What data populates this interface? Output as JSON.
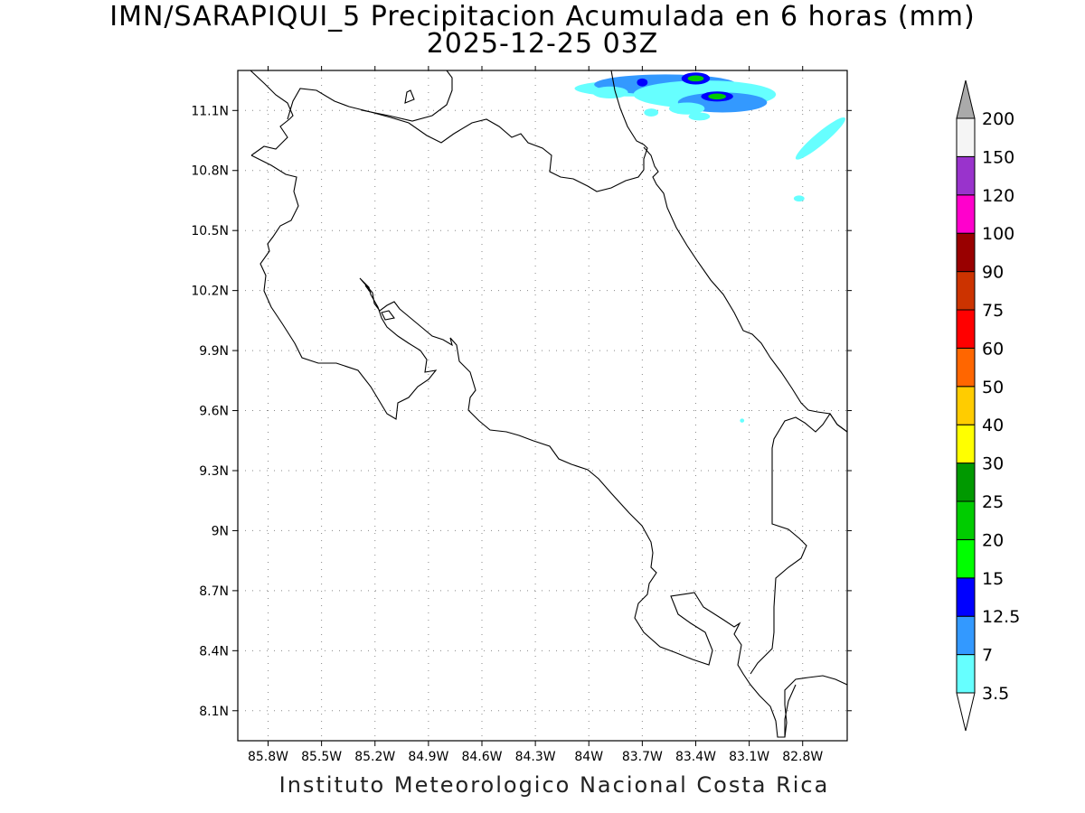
{
  "title": "IMN/SARAPIQUI_5 Precipitacion Acumulada en 6 horas (mm)",
  "subtitle": "2025-12-25 03Z",
  "footer": "Instituto Meteorologico Nacional Costa Rica",
  "axes": {
    "lon_ticks": [
      "85.8W",
      "85.5W",
      "85.2W",
      "84.9W",
      "84.6W",
      "84.3W",
      "84W",
      "83.7W",
      "83.4W",
      "83.1W",
      "82.8W"
    ],
    "lat_ticks": [
      "11.1N",
      "10.8N",
      "10.5N",
      "10.2N",
      "9.9N",
      "9.6N",
      "9.3N",
      "9N",
      "8.7N",
      "8.4N",
      "8.1N"
    ],
    "lon_range": [
      -85.97,
      -82.55
    ],
    "lat_range": [
      7.95,
      11.3
    ]
  },
  "colorbar": {
    "labels": [
      "3.5",
      "7",
      "12.5",
      "15",
      "20",
      "25",
      "30",
      "40",
      "50",
      "60",
      "75",
      "90",
      "100",
      "120",
      "150",
      "200"
    ],
    "colors": [
      "#ffffff",
      "#66ffff",
      "#3399ff",
      "#0000ff",
      "#00ff00",
      "#00cc00",
      "#009900",
      "#ffff00",
      "#ffcc00",
      "#ff6600",
      "#ff0000",
      "#cc3300",
      "#990000",
      "#ff00cc",
      "#9933cc",
      "#f5f5f5",
      "#aaaaaa"
    ]
  },
  "precip_cells": [
    {
      "lon": -83.75,
      "lat": 11.21,
      "rx_deg": 0.33,
      "ry_deg": 0.04,
      "level": 1
    },
    {
      "lon": -83.57,
      "lat": 11.23,
      "rx_deg": 0.4,
      "ry_deg": 0.05,
      "level": 2
    },
    {
      "lon": -83.35,
      "lat": 11.18,
      "rx_deg": 0.4,
      "ry_deg": 0.07,
      "level": 1
    },
    {
      "lon": -83.25,
      "lat": 11.14,
      "rx_deg": 0.25,
      "ry_deg": 0.05,
      "level": 2
    },
    {
      "lon": -83.28,
      "lat": 11.17,
      "rx_deg": 0.09,
      "ry_deg": 0.025,
      "level": 3
    },
    {
      "lon": -83.28,
      "lat": 11.17,
      "rx_deg": 0.05,
      "ry_deg": 0.015,
      "level": 5
    },
    {
      "lon": -83.4,
      "lat": 11.26,
      "rx_deg": 0.08,
      "ry_deg": 0.03,
      "level": 3
    },
    {
      "lon": -83.4,
      "lat": 11.26,
      "rx_deg": 0.045,
      "ry_deg": 0.015,
      "level": 5
    },
    {
      "lon": -83.7,
      "lat": 11.24,
      "rx_deg": 0.03,
      "ry_deg": 0.02,
      "level": 3
    },
    {
      "lon": -83.88,
      "lat": 11.19,
      "rx_deg": 0.1,
      "ry_deg": 0.03,
      "level": 1
    },
    {
      "lon": -83.65,
      "lat": 11.09,
      "rx_deg": 0.04,
      "ry_deg": 0.02,
      "level": 1
    },
    {
      "lon": -83.38,
      "lat": 11.07,
      "rx_deg": 0.06,
      "ry_deg": 0.02,
      "level": 1
    },
    {
      "lon": -83.45,
      "lat": 11.11,
      "rx_deg": 0.1,
      "ry_deg": 0.03,
      "level": 1
    },
    {
      "lon": -82.7,
      "lat": 10.96,
      "rx_deg": 0.18,
      "ry_deg": 0.03,
      "level": 1,
      "angle": -40
    },
    {
      "lon": -82.82,
      "lat": 10.66,
      "rx_deg": 0.03,
      "ry_deg": 0.015,
      "level": 1
    },
    {
      "lon": -83.14,
      "lat": 9.55,
      "rx_deg": 0.012,
      "ry_deg": 0.01,
      "level": 1
    }
  ]
}
